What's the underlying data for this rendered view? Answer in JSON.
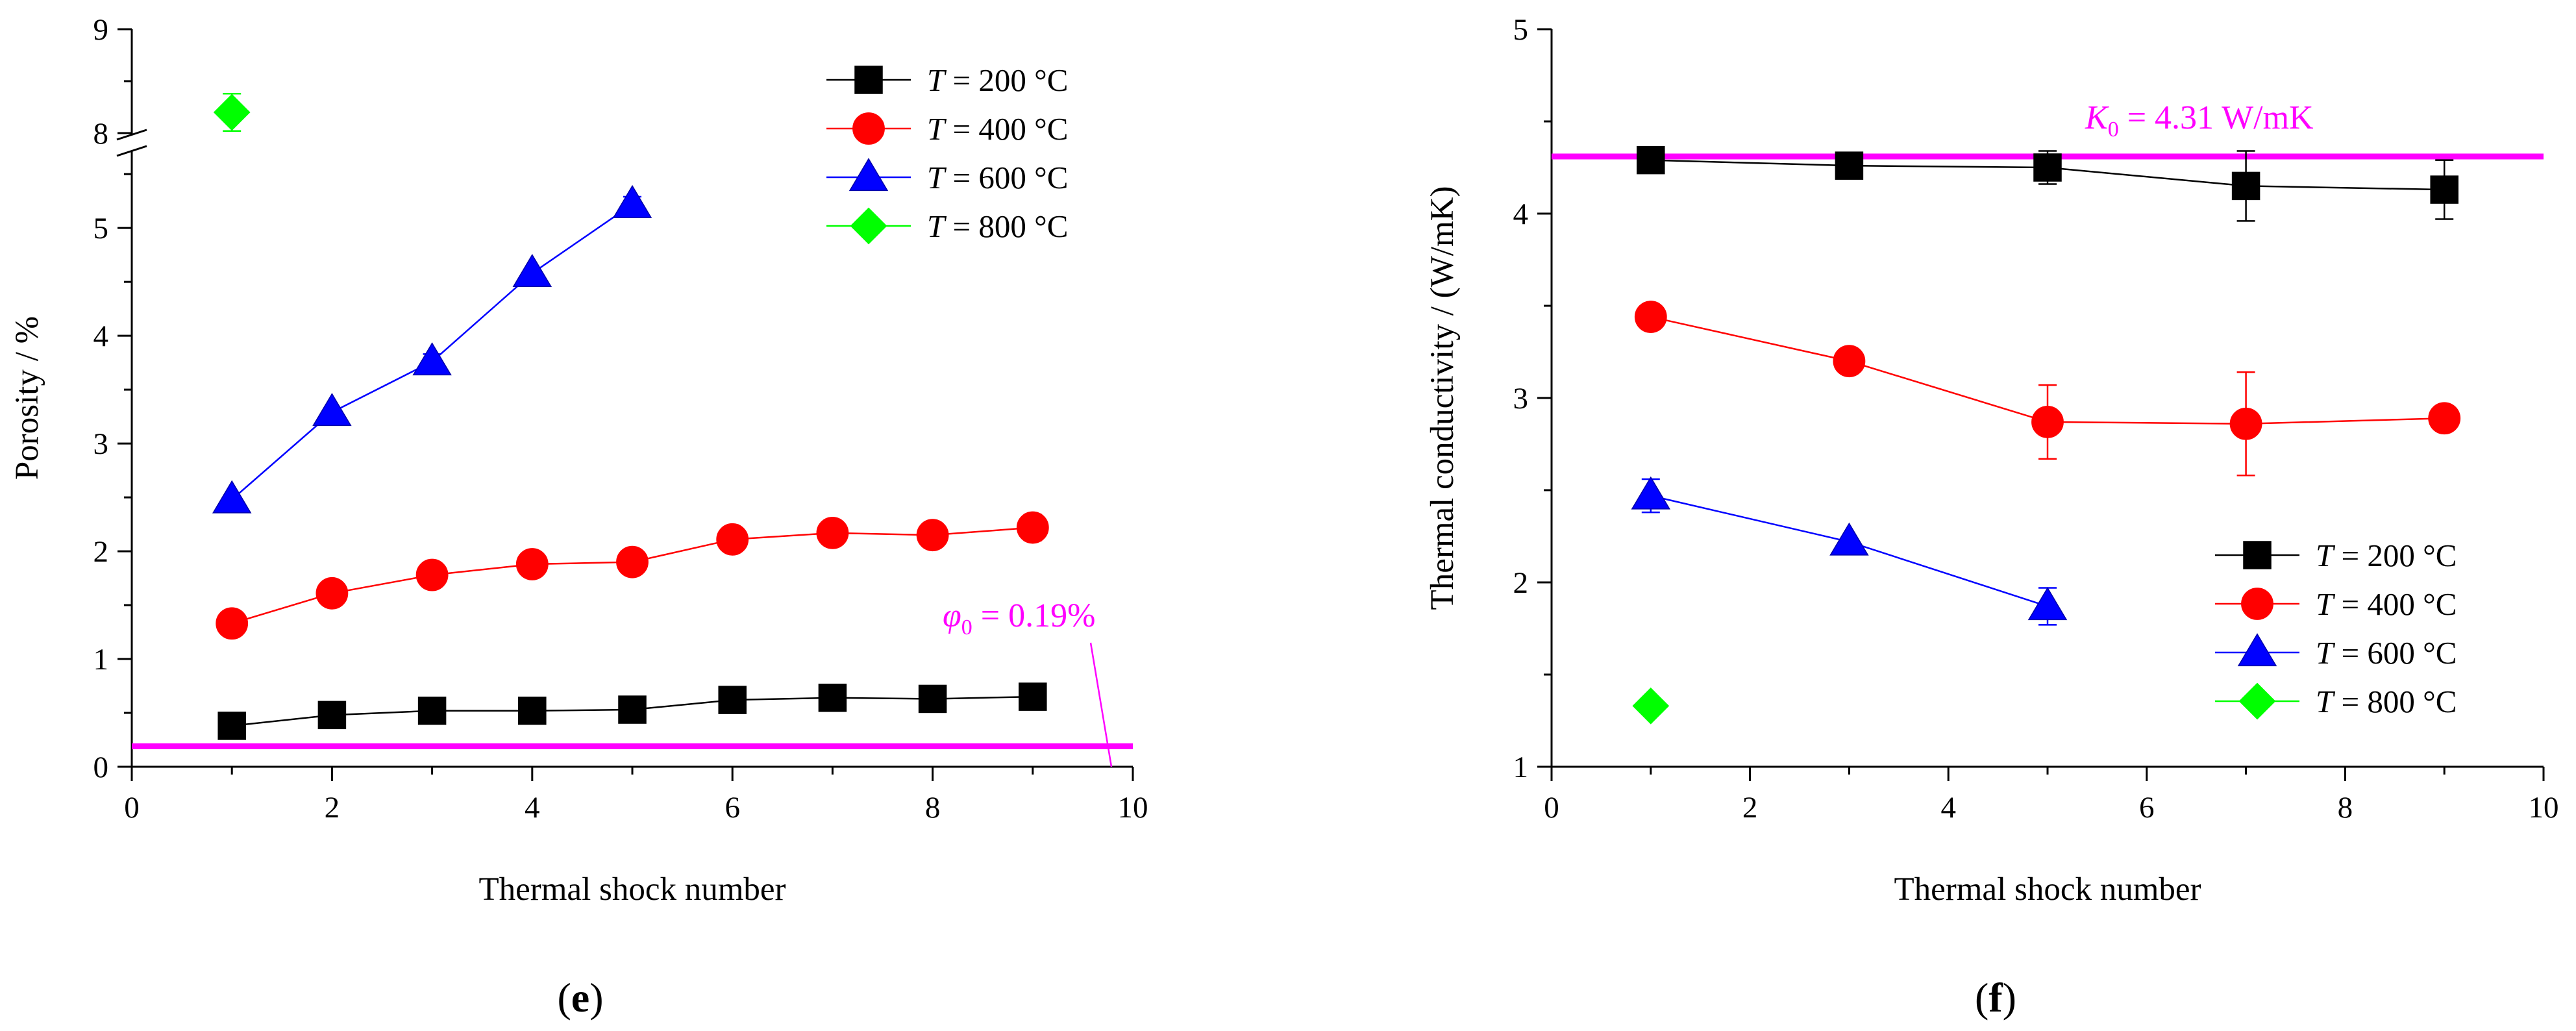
{
  "chart_data": [
    {
      "type": "line",
      "panel_label": "(e)",
      "xlabel": "Thermal shock number",
      "ylabel": "Porosity / %",
      "xlim": [
        0,
        10
      ],
      "x_ticks": [
        "0",
        "2",
        "4",
        "6",
        "8",
        "10"
      ],
      "y_ticks": [
        "0",
        "1",
        "2",
        "3",
        "4",
        "5",
        "8",
        "9"
      ],
      "y_axis_break": [
        5.7,
        8.0
      ],
      "legend_position": "top-right",
      "series": [
        {
          "name": "T = 200 °C",
          "marker": "square",
          "color": "#000000",
          "x": [
            1,
            2,
            3,
            4,
            5,
            6,
            7,
            8,
            9
          ],
          "y": [
            0.38,
            0.48,
            0.52,
            0.52,
            0.53,
            0.62,
            0.64,
            0.63,
            0.65
          ]
        },
        {
          "name": "T = 400 °C",
          "marker": "circle",
          "color": "#ff0000",
          "x": [
            1,
            2,
            3,
            4,
            5,
            6,
            7,
            8,
            9
          ],
          "y": [
            1.33,
            1.61,
            1.78,
            1.88,
            1.9,
            2.11,
            2.17,
            2.15,
            2.22
          ],
          "err": [
            0,
            0,
            0,
            0,
            0,
            0,
            0,
            0.1,
            0.12
          ]
        },
        {
          "name": "T = 600 °C",
          "marker": "triangle",
          "color": "#0000ff",
          "x": [
            1,
            2,
            3,
            4,
            5
          ],
          "y": [
            2.48,
            3.29,
            3.76,
            4.58,
            5.22
          ],
          "err": [
            0,
            0,
            0.07,
            0,
            0.07
          ]
        },
        {
          "name": "T = 800 °C",
          "marker": "diamond",
          "color": "#00ff00",
          "x": [
            1
          ],
          "y": [
            8.2
          ],
          "err": [
            0.18
          ]
        }
      ],
      "reference": {
        "value": 0.19,
        "color": "#ff00ff",
        "label_symbol": "φ",
        "label_sub": "0",
        "label_text": " = 0.19%"
      }
    },
    {
      "type": "line",
      "panel_label": "(f)",
      "xlabel": "Thermal shock number",
      "ylabel": "Thermal conductivity / (W/mK)",
      "xlim": [
        0,
        10
      ],
      "ylim": [
        1,
        5
      ],
      "x_ticks": [
        "0",
        "2",
        "4",
        "6",
        "8",
        "10"
      ],
      "y_ticks": [
        "1",
        "2",
        "3",
        "4",
        "5"
      ],
      "legend_position": "bottom-right",
      "series": [
        {
          "name": "T = 200 °C",
          "marker": "square",
          "color": "#000000",
          "x": [
            1,
            3,
            5,
            7,
            9
          ],
          "y": [
            4.29,
            4.26,
            4.25,
            4.15,
            4.13
          ],
          "err": [
            0.05,
            0.03,
            0.09,
            0.19,
            0.16
          ]
        },
        {
          "name": "T = 400 °C",
          "marker": "circle",
          "color": "#ff0000",
          "x": [
            1,
            3,
            5,
            7,
            9
          ],
          "y": [
            3.44,
            3.2,
            2.87,
            2.86,
            2.89
          ],
          "err": [
            0,
            0,
            0.2,
            0.28,
            0
          ]
        },
        {
          "name": "T = 600 °C",
          "marker": "triangle",
          "color": "#0000ff",
          "x": [
            1,
            3,
            5
          ],
          "y": [
            2.47,
            2.22,
            1.87
          ],
          "err": [
            0.09,
            0,
            0.1
          ]
        },
        {
          "name": "T = 800 °C",
          "marker": "diamond",
          "color": "#00ff00",
          "x": [
            1
          ],
          "y": [
            1.33
          ],
          "err": [
            0
          ]
        }
      ],
      "reference": {
        "value": 4.31,
        "color": "#ff00ff",
        "label_symbol": "K",
        "label_sub": "0",
        "label_text": " = 4.31 W/mK"
      }
    }
  ]
}
